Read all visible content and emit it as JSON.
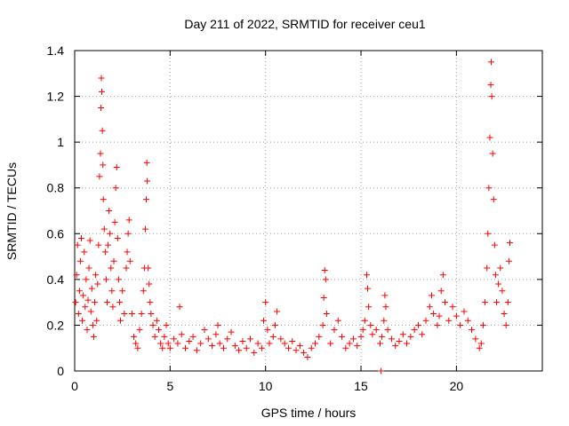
{
  "chart_data": {
    "type": "scatter",
    "title": "Day 211 of 2022, SRMTID for receiver ceu1",
    "xlabel": "GPS time / hours",
    "ylabel": "SRMTID / TECUs",
    "xlim": [
      0,
      24.5
    ],
    "ylim": [
      0,
      1.4
    ],
    "xticks": [
      0,
      5,
      10,
      15,
      20
    ],
    "xtick_labels": [
      "0",
      "5",
      "10",
      "15",
      "20"
    ],
    "yticks": [
      0,
      0.2,
      0.4,
      0.6,
      0.8,
      1.0,
      1.2,
      1.4
    ],
    "ytick_labels": [
      "0",
      "0.2",
      "0.4",
      "0.6",
      "0.8",
      "1",
      "1.2",
      "1.4"
    ],
    "grid": true,
    "marker": "+",
    "color": "#ff0000",
    "series": [
      {
        "name": "SRMTID",
        "points": [
          [
            0.05,
            0.3
          ],
          [
            0.1,
            0.42
          ],
          [
            0.15,
            0.55
          ],
          [
            0.2,
            0.25
          ],
          [
            0.25,
            0.35
          ],
          [
            0.3,
            0.48
          ],
          [
            0.35,
            0.58
          ],
          [
            0.4,
            0.22
          ],
          [
            0.45,
            0.33
          ],
          [
            0.5,
            0.52
          ],
          [
            0.55,
            0.28
          ],
          [
            0.6,
            0.4
          ],
          [
            0.65,
            0.18
          ],
          [
            0.7,
            0.31
          ],
          [
            0.75,
            0.45
          ],
          [
            0.8,
            0.57
          ],
          [
            0.85,
            0.26
          ],
          [
            0.9,
            0.36
          ],
          [
            0.95,
            0.2
          ],
          [
            1.0,
            0.15
          ],
          [
            1.05,
            0.3
          ],
          [
            1.1,
            0.42
          ],
          [
            1.15,
            0.22
          ],
          [
            1.2,
            0.38
          ],
          [
            1.25,
            0.55
          ],
          [
            1.3,
            0.85
          ],
          [
            1.35,
            0.95
          ],
          [
            1.38,
            1.15
          ],
          [
            1.4,
            1.28
          ],
          [
            1.42,
            1.22
          ],
          [
            1.45,
            1.05
          ],
          [
            1.48,
            0.9
          ],
          [
            1.5,
            0.75
          ],
          [
            1.55,
            0.62
          ],
          [
            1.6,
            0.52
          ],
          [
            1.65,
            0.4
          ],
          [
            1.7,
            0.3
          ],
          [
            1.75,
            0.55
          ],
          [
            1.8,
            0.7
          ],
          [
            1.85,
            0.6
          ],
          [
            1.9,
            0.45
          ],
          [
            1.95,
            0.35
          ],
          [
            2.0,
            0.28
          ],
          [
            2.05,
            0.48
          ],
          [
            2.1,
            0.65
          ],
          [
            2.15,
            0.8
          ],
          [
            2.2,
            0.89
          ],
          [
            2.25,
            0.58
          ],
          [
            2.3,
            0.4
          ],
          [
            2.35,
            0.3
          ],
          [
            2.4,
            0.22
          ],
          [
            2.5,
            0.35
          ],
          [
            2.6,
            0.25
          ],
          [
            2.7,
            0.45
          ],
          [
            2.75,
            0.52
          ],
          [
            2.8,
            0.6
          ],
          [
            2.85,
            0.66
          ],
          [
            2.9,
            0.48
          ],
          [
            3.0,
            0.25
          ],
          [
            3.1,
            0.15
          ],
          [
            3.2,
            0.12
          ],
          [
            3.3,
            0.1
          ],
          [
            3.4,
            0.18
          ],
          [
            3.5,
            0.25
          ],
          [
            3.6,
            0.35
          ],
          [
            3.65,
            0.45
          ],
          [
            3.7,
            0.62
          ],
          [
            3.75,
            0.75
          ],
          [
            3.78,
            0.91
          ],
          [
            3.8,
            0.83
          ],
          [
            3.85,
            0.45
          ],
          [
            3.9,
            0.38
          ],
          [
            3.95,
            0.3
          ],
          [
            4.0,
            0.25
          ],
          [
            4.1,
            0.2
          ],
          [
            4.2,
            0.15
          ],
          [
            4.3,
            0.22
          ],
          [
            4.4,
            0.18
          ],
          [
            4.5,
            0.12
          ],
          [
            4.6,
            0.1
          ],
          [
            4.7,
            0.15
          ],
          [
            4.8,
            0.2
          ],
          [
            4.9,
            0.12
          ],
          [
            5.0,
            0.1
          ],
          [
            5.2,
            0.14
          ],
          [
            5.4,
            0.12
          ],
          [
            5.5,
            0.28
          ],
          [
            5.6,
            0.16
          ],
          [
            5.8,
            0.1
          ],
          [
            6.0,
            0.13
          ],
          [
            6.2,
            0.15
          ],
          [
            6.4,
            0.09
          ],
          [
            6.6,
            0.12
          ],
          [
            6.8,
            0.18
          ],
          [
            7.0,
            0.14
          ],
          [
            7.2,
            0.11
          ],
          [
            7.4,
            0.16
          ],
          [
            7.5,
            0.2
          ],
          [
            7.6,
            0.12
          ],
          [
            7.8,
            0.1
          ],
          [
            8.0,
            0.14
          ],
          [
            8.2,
            0.17
          ],
          [
            8.4,
            0.11
          ],
          [
            8.6,
            0.09
          ],
          [
            8.8,
            0.13
          ],
          [
            9.0,
            0.1
          ],
          [
            9.2,
            0.14
          ],
          [
            9.4,
            0.08
          ],
          [
            9.6,
            0.12
          ],
          [
            9.8,
            0.1
          ],
          [
            9.9,
            0.22
          ],
          [
            10.0,
            0.3
          ],
          [
            10.1,
            0.18
          ],
          [
            10.2,
            0.12
          ],
          [
            10.4,
            0.15
          ],
          [
            10.5,
            0.2
          ],
          [
            10.6,
            0.26
          ],
          [
            10.8,
            0.14
          ],
          [
            11.0,
            0.12
          ],
          [
            11.2,
            0.1
          ],
          [
            11.4,
            0.13
          ],
          [
            11.6,
            0.09
          ],
          [
            11.8,
            0.11
          ],
          [
            12.0,
            0.08
          ],
          [
            12.2,
            0.06
          ],
          [
            12.4,
            0.1
          ],
          [
            12.6,
            0.12
          ],
          [
            12.8,
            0.15
          ],
          [
            13.0,
            0.2
          ],
          [
            13.05,
            0.32
          ],
          [
            13.1,
            0.44
          ],
          [
            13.15,
            0.4
          ],
          [
            13.2,
            0.25
          ],
          [
            13.4,
            0.12
          ],
          [
            13.6,
            0.18
          ],
          [
            13.8,
            0.22
          ],
          [
            14.0,
            0.15
          ],
          [
            14.2,
            0.1
          ],
          [
            14.4,
            0.12
          ],
          [
            14.6,
            0.14
          ],
          [
            14.8,
            0.11
          ],
          [
            15.0,
            0.15
          ],
          [
            15.1,
            0.18
          ],
          [
            15.2,
            0.22
          ],
          [
            15.3,
            0.42
          ],
          [
            15.35,
            0.36
          ],
          [
            15.4,
            0.28
          ],
          [
            15.5,
            0.2
          ],
          [
            15.6,
            0.16
          ],
          [
            15.8,
            0.18
          ],
          [
            16.0,
            0.12
          ],
          [
            16.05,
            0.0
          ],
          [
            16.1,
            0.15
          ],
          [
            16.2,
            0.22
          ],
          [
            16.25,
            0.33
          ],
          [
            16.3,
            0.28
          ],
          [
            16.4,
            0.18
          ],
          [
            16.6,
            0.14
          ],
          [
            16.8,
            0.11
          ],
          [
            17.0,
            0.13
          ],
          [
            17.2,
            0.16
          ],
          [
            17.4,
            0.12
          ],
          [
            17.6,
            0.15
          ],
          [
            17.8,
            0.18
          ],
          [
            18.0,
            0.2
          ],
          [
            18.2,
            0.16
          ],
          [
            18.4,
            0.22
          ],
          [
            18.6,
            0.28
          ],
          [
            18.7,
            0.33
          ],
          [
            18.8,
            0.25
          ],
          [
            19.0,
            0.2
          ],
          [
            19.1,
            0.24
          ],
          [
            19.2,
            0.35
          ],
          [
            19.3,
            0.42
          ],
          [
            19.4,
            0.3
          ],
          [
            19.6,
            0.22
          ],
          [
            19.8,
            0.28
          ],
          [
            20.0,
            0.24
          ],
          [
            20.2,
            0.2
          ],
          [
            20.4,
            0.26
          ],
          [
            20.6,
            0.22
          ],
          [
            20.8,
            0.18
          ],
          [
            21.0,
            0.14
          ],
          [
            21.2,
            0.1
          ],
          [
            21.3,
            0.12
          ],
          [
            21.4,
            0.2
          ],
          [
            21.5,
            0.3
          ],
          [
            21.6,
            0.45
          ],
          [
            21.65,
            0.6
          ],
          [
            21.7,
            0.8
          ],
          [
            21.75,
            1.02
          ],
          [
            21.8,
            1.25
          ],
          [
            21.82,
            1.35
          ],
          [
            21.85,
            1.2
          ],
          [
            21.9,
            0.95
          ],
          [
            21.95,
            0.75
          ],
          [
            22.0,
            0.55
          ],
          [
            22.05,
            0.42
          ],
          [
            22.1,
            0.3
          ],
          [
            22.2,
            0.38
          ],
          [
            22.3,
            0.45
          ],
          [
            22.4,
            0.35
          ],
          [
            22.5,
            0.25
          ],
          [
            22.6,
            0.2
          ],
          [
            22.7,
            0.3
          ],
          [
            22.75,
            0.48
          ],
          [
            22.8,
            0.56
          ]
        ]
      }
    ]
  }
}
